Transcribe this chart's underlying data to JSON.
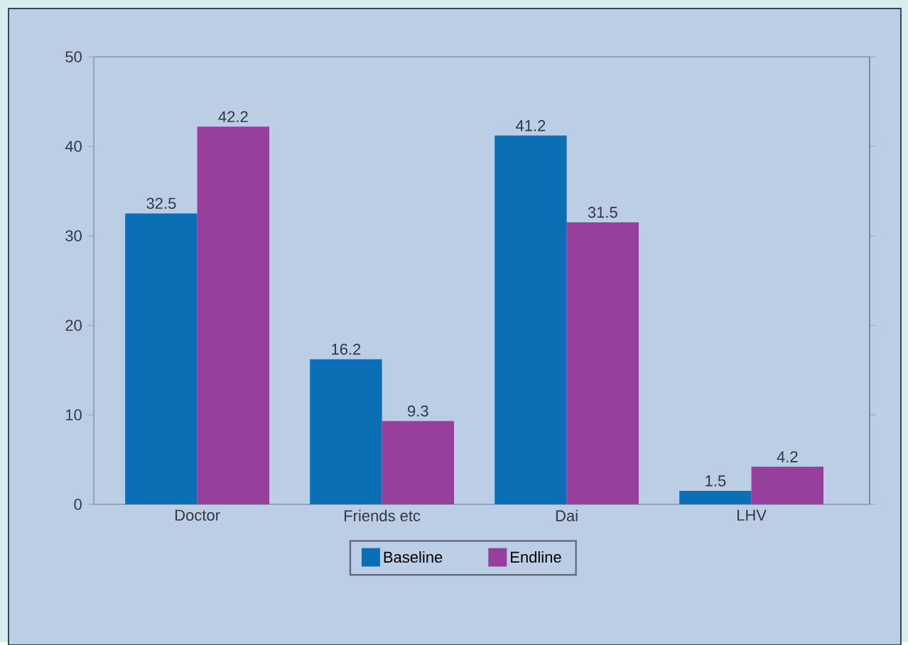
{
  "chart_data": {
    "type": "bar",
    "categories": [
      "Doctor",
      "Friends etc",
      "Dai",
      "LHV"
    ],
    "series": [
      {
        "name": "Baseline",
        "color": "#0b6fb5",
        "values": [
          32.5,
          16.2,
          41.2,
          1.5
        ]
      },
      {
        "name": "Endline",
        "color": "#973f9c",
        "values": [
          42.2,
          9.3,
          31.5,
          4.2
        ]
      }
    ],
    "ylim": [
      0,
      50
    ],
    "yticks": [
      0,
      10,
      20,
      30,
      40,
      50
    ],
    "data_labels": true,
    "legend": "bottom",
    "grid": false
  }
}
